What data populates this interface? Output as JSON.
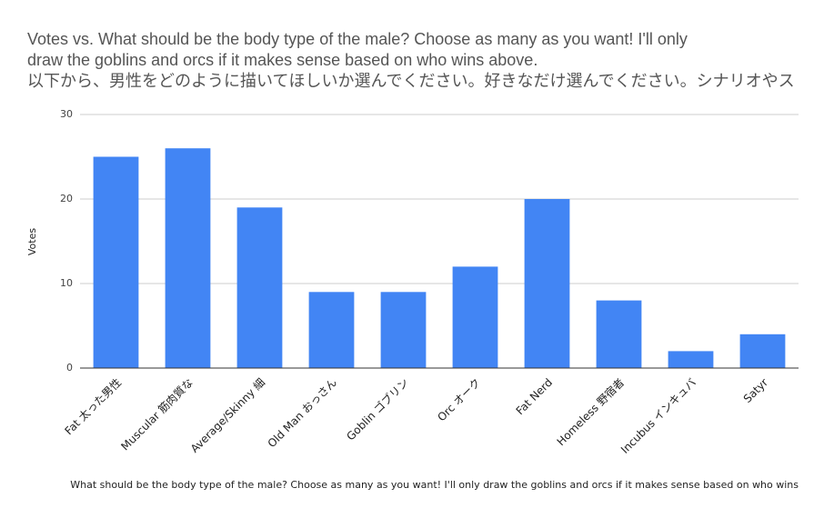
{
  "chart_data": {
    "type": "bar",
    "title": [
      "Votes vs. What should be the body type of the male? Choose as many as you want! I'll only",
      "draw the goblins and orcs if it makes sense based on who wins above.",
      "以下から、男性をどのように描いてほしいか選んでください。好きなだけ選んでください。シナリオやス"
    ],
    "y_label": "Votes",
    "x_label": "What should be the body type of the male? Choose as many as you want! I'll only draw the goblins and orcs if it makes sense based on who wins",
    "categories": [
      "Fat 太った男性",
      "Muscular 筋肉質な",
      "Average/Skinny 細",
      "Old Man おっさん",
      "Goblin ゴブリン",
      "Orc オーク",
      "Fat Nerd",
      "Homeless 野宿者",
      "Incubus インキュバ",
      "Satyr"
    ],
    "values": [
      25,
      26,
      19,
      9,
      9,
      12,
      20,
      8,
      2,
      4
    ],
    "color": "#4285f4",
    "ylim": [
      0,
      30
    ],
    "yticks": [
      0,
      10,
      20,
      30
    ],
    "grid": true
  }
}
